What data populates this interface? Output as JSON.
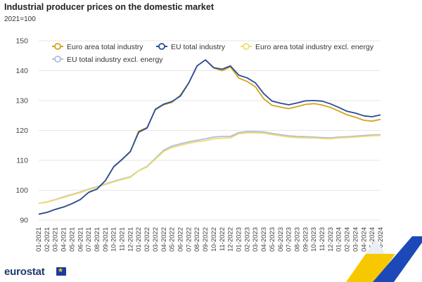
{
  "header": {
    "title": "Industrial producer prices on the domestic market",
    "subtitle": "2021=100"
  },
  "brand": {
    "name": "eurostat"
  },
  "colors": {
    "euro_area": "#d2a416",
    "eu": "#284b9c",
    "euro_area_excl": "#f0dc6a",
    "eu_excl": "#aebddf",
    "grid": "#e6e6e6",
    "deco_blue": "#1c48b8",
    "deco_yellow": "#f7c800"
  },
  "chart_data": {
    "type": "line",
    "x": [
      "01-2021",
      "02-2021",
      "03-2021",
      "04-2021",
      "05-2021",
      "06-2021",
      "07-2021",
      "08-2021",
      "09-2021",
      "10-2021",
      "11-2021",
      "12-2021",
      "01-2022",
      "02-2022",
      "03-2022",
      "04-2022",
      "05-2022",
      "06-2022",
      "07-2022",
      "08-2022",
      "09-2022",
      "10-2022",
      "11-2022",
      "12-2022",
      "01-2023",
      "02-2023",
      "03-2023",
      "04-2023",
      "05-2023",
      "06-2023",
      "07-2023",
      "08-2023",
      "09-2023",
      "10-2023",
      "11-2023",
      "12-2023",
      "01-2024",
      "02-2024",
      "03-2024",
      "04-2024",
      "05-2024",
      "06-2024"
    ],
    "ylim": [
      90,
      150
    ],
    "yticks": [
      90,
      100,
      110,
      120,
      130,
      140,
      150
    ],
    "grid": true,
    "legend_position": "top",
    "series": [
      {
        "name": "Euro area total industry",
        "color_key": "euro_area",
        "marker": "circle",
        "values": [
          92.0,
          92.6,
          93.6,
          94.4,
          95.5,
          96.9,
          99.3,
          100.4,
          103.2,
          107.8,
          110.2,
          112.9,
          119.8,
          121.0,
          127.0,
          128.6,
          129.4,
          131.8,
          135.9,
          141.6,
          143.6,
          140.9,
          140.0,
          141.3,
          137.5,
          136.4,
          134.6,
          130.6,
          128.4,
          127.8,
          127.3,
          128.0,
          128.7,
          129.0,
          128.5,
          127.7,
          126.5,
          125.2,
          124.4,
          123.4,
          123.1,
          123.7
        ]
      },
      {
        "name": "EU total industry",
        "color_key": "eu",
        "marker": "circle",
        "values": [
          92.0,
          92.6,
          93.6,
          94.4,
          95.5,
          96.9,
          99.3,
          100.4,
          103.2,
          107.9,
          110.3,
          113.0,
          119.4,
          120.8,
          127.1,
          128.8,
          129.7,
          131.5,
          135.9,
          141.6,
          143.6,
          141.0,
          140.5,
          141.6,
          138.5,
          137.6,
          135.9,
          132.3,
          129.8,
          129.1,
          128.6,
          129.2,
          129.9,
          130.0,
          129.8,
          128.9,
          127.7,
          126.4,
          125.8,
          124.9,
          124.6,
          125.2
        ]
      },
      {
        "name": "Euro area total industry excl. energy",
        "color_key": "euro_area_excl",
        "marker": "circle",
        "values": [
          95.6,
          96.0,
          96.8,
          97.6,
          98.4,
          99.2,
          100.2,
          101.0,
          101.9,
          102.8,
          103.6,
          104.3,
          106.5,
          107.8,
          110.4,
          113.0,
          114.3,
          115.0,
          115.7,
          116.2,
          116.6,
          117.2,
          117.4,
          117.5,
          118.9,
          119.2,
          119.2,
          119.1,
          118.6,
          118.2,
          117.8,
          117.6,
          117.5,
          117.5,
          117.3,
          117.2,
          117.5,
          117.6,
          117.8,
          118.0,
          118.2,
          118.3
        ]
      },
      {
        "name": "EU total industry excl. energy",
        "color_key": "eu_excl",
        "marker": "circle",
        "values": [
          95.6,
          96.1,
          96.9,
          97.8,
          98.6,
          99.4,
          100.4,
          101.2,
          102.1,
          103.0,
          103.8,
          104.5,
          106.6,
          108.0,
          110.7,
          113.4,
          114.8,
          115.5,
          116.2,
          116.7,
          117.2,
          117.8,
          118.0,
          118.0,
          119.3,
          119.6,
          119.6,
          119.5,
          119.0,
          118.6,
          118.2,
          118.0,
          117.9,
          117.8,
          117.6,
          117.5,
          117.8,
          117.9,
          118.1,
          118.3,
          118.5,
          118.6
        ]
      }
    ]
  }
}
